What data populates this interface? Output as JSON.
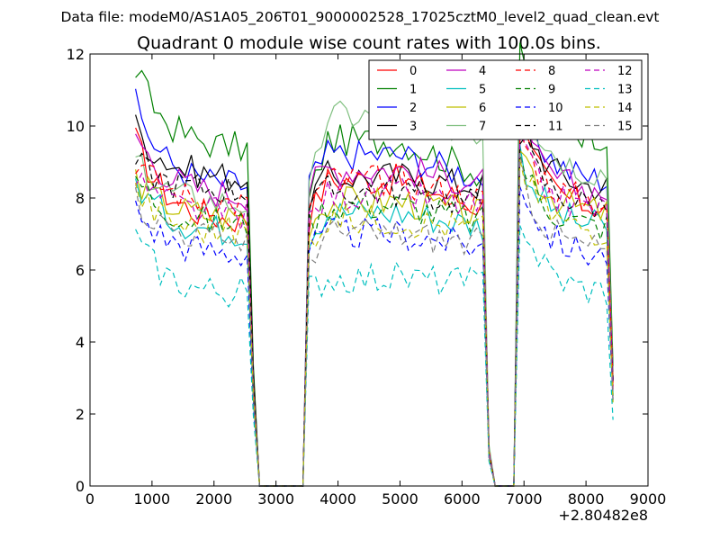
{
  "chart_data": {
    "type": "line",
    "suptitle": "Data file: modeM0/AS1A05_206T01_9000002528_17025cztM0_level2_quad_clean.evt",
    "title": "Quadrant 0 module wise count rates with 100.0s bins.",
    "xlabel": "",
    "ylabel": "",
    "x_offset_label": "+2.80482e8",
    "xlim": [
      0,
      9000
    ],
    "ylim": [
      0,
      12
    ],
    "xticks": [
      0,
      1000,
      2000,
      3000,
      4000,
      5000,
      6000,
      7000,
      8000,
      9000
    ],
    "yticks": [
      0,
      2,
      4,
      6,
      8,
      10,
      12
    ],
    "xtick_labels": [
      "0",
      "1000",
      "2000",
      "3000",
      "4000",
      "5000",
      "6000",
      "7000",
      "8000",
      "9000"
    ],
    "ytick_labels": [
      "0",
      "2",
      "4",
      "6",
      "8",
      "10",
      "12"
    ],
    "grid": false,
    "legend_position": "top-right",
    "legend_columns": 4,
    "bin_width_s": 100,
    "segments": [
      {
        "name": "segment-1",
        "x_start": 735,
        "x_end": 2635,
        "profile": "decay"
      },
      {
        "name": "segment-2",
        "x_start": 3535,
        "x_end": 6435,
        "profile": "arch"
      },
      {
        "name": "segment-3",
        "x_start": 6935,
        "x_end": 8435,
        "profile": "decay"
      }
    ],
    "gap_points": [
      {
        "x": 2735,
        "y": 0
      },
      {
        "x": 3035,
        "y": 0
      },
      {
        "x": 3335,
        "y": 0
      },
      {
        "x": 6635,
        "y": 0
      },
      {
        "x": 6735,
        "y": 0
      },
      {
        "x": 6835,
        "y": 0
      }
    ],
    "series": [
      {
        "name": "0",
        "color": "#ff0000",
        "dash": "solid",
        "levels": [
          [
            9.6,
            7.6,
            7.3
          ],
          [
            7.5,
            8.5,
            7.7
          ],
          [
            10.1,
            8.2,
            7.6
          ]
        ]
      },
      {
        "name": "1",
        "color": "#008000",
        "dash": "solid",
        "levels": [
          [
            11.6,
            9.6,
            9.3
          ],
          [
            7.9,
            9.6,
            8.6
          ],
          [
            11.9,
            10.2,
            9.6
          ]
        ]
      },
      {
        "name": "2",
        "color": "#0000ff",
        "dash": "solid",
        "levels": [
          [
            10.6,
            8.8,
            8.2
          ],
          [
            8.4,
            9.2,
            8.5
          ],
          [
            11.0,
            8.7,
            8.4
          ]
        ]
      },
      {
        "name": "3",
        "color": "#000000",
        "dash": "solid",
        "levels": [
          [
            10.0,
            8.8,
            8.5
          ],
          [
            8.0,
            8.6,
            8.3
          ],
          [
            10.6,
            8.5,
            8.2
          ]
        ]
      },
      {
        "name": "4",
        "color": "#bf00bf",
        "dash": "solid",
        "levels": [
          [
            9.8,
            8.4,
            8.0
          ],
          [
            8.3,
            8.8,
            8.4
          ],
          [
            10.1,
            8.3,
            8.1
          ]
        ]
      },
      {
        "name": "5",
        "color": "#00bfbf",
        "dash": "solid",
        "levels": [
          [
            8.5,
            7.3,
            7.0
          ],
          [
            7.0,
            7.6,
            7.2
          ],
          [
            9.3,
            7.5,
            7.1
          ]
        ]
      },
      {
        "name": "6",
        "color": "#bfbf00",
        "dash": "solid",
        "levels": [
          [
            8.6,
            7.7,
            7.4
          ],
          [
            7.3,
            7.9,
            7.5
          ],
          [
            9.6,
            7.9,
            7.5
          ]
        ]
      },
      {
        "name": "7",
        "color": "#7fbf7f",
        "dash": "solid",
        "levels": [
          [
            9.0,
            8.0,
            7.8
          ],
          [
            8.1,
            10.3,
            9.8
          ],
          [
            11.3,
            9.0,
            8.6
          ]
        ]
      },
      {
        "name": "8",
        "color": "#ff0000",
        "dash": "dashed",
        "levels": [
          [
            9.1,
            8.0,
            7.8
          ],
          [
            7.9,
            8.5,
            7.9
          ],
          [
            9.9,
            8.1,
            7.8
          ]
        ]
      },
      {
        "name": "9",
        "color": "#008000",
        "dash": "dashed",
        "levels": [
          [
            8.6,
            7.4,
            7.2
          ],
          [
            7.2,
            7.8,
            7.3
          ],
          [
            9.2,
            7.5,
            7.1
          ]
        ]
      },
      {
        "name": "10",
        "color": "#0000ff",
        "dash": "dashed",
        "levels": [
          [
            7.7,
            6.6,
            6.4
          ],
          [
            6.6,
            7.0,
            6.6
          ],
          [
            8.6,
            6.7,
            6.3
          ]
        ]
      },
      {
        "name": "11",
        "color": "#000000",
        "dash": "dashed",
        "levels": [
          [
            9.0,
            8.3,
            8.2
          ],
          [
            7.7,
            8.2,
            7.8
          ],
          [
            9.9,
            8.0,
            7.7
          ]
        ]
      },
      {
        "name": "12",
        "color": "#bf00bf",
        "dash": "dashed",
        "levels": [
          [
            8.6,
            7.6,
            7.5
          ],
          [
            7.4,
            8.1,
            7.7
          ],
          [
            9.5,
            7.8,
            7.6
          ]
        ]
      },
      {
        "name": "13",
        "color": "#00bfbf",
        "dash": "dashed",
        "levels": [
          [
            6.9,
            5.5,
            5.3
          ],
          [
            5.5,
            5.8,
            5.6
          ],
          [
            7.6,
            5.7,
            5.3
          ]
        ]
      },
      {
        "name": "14",
        "color": "#bfbf00",
        "dash": "dashed",
        "levels": [
          [
            8.2,
            7.2,
            7.0
          ],
          [
            6.9,
            7.4,
            7.1
          ],
          [
            9.0,
            7.3,
            7.0
          ]
        ]
      },
      {
        "name": "15",
        "color": "#7f7f7f",
        "dash": "dashed",
        "levels": [
          [
            8.0,
            7.0,
            6.8
          ],
          [
            6.4,
            7.0,
            6.7
          ],
          [
            8.8,
            6.7,
            6.5
          ]
        ]
      }
    ]
  }
}
